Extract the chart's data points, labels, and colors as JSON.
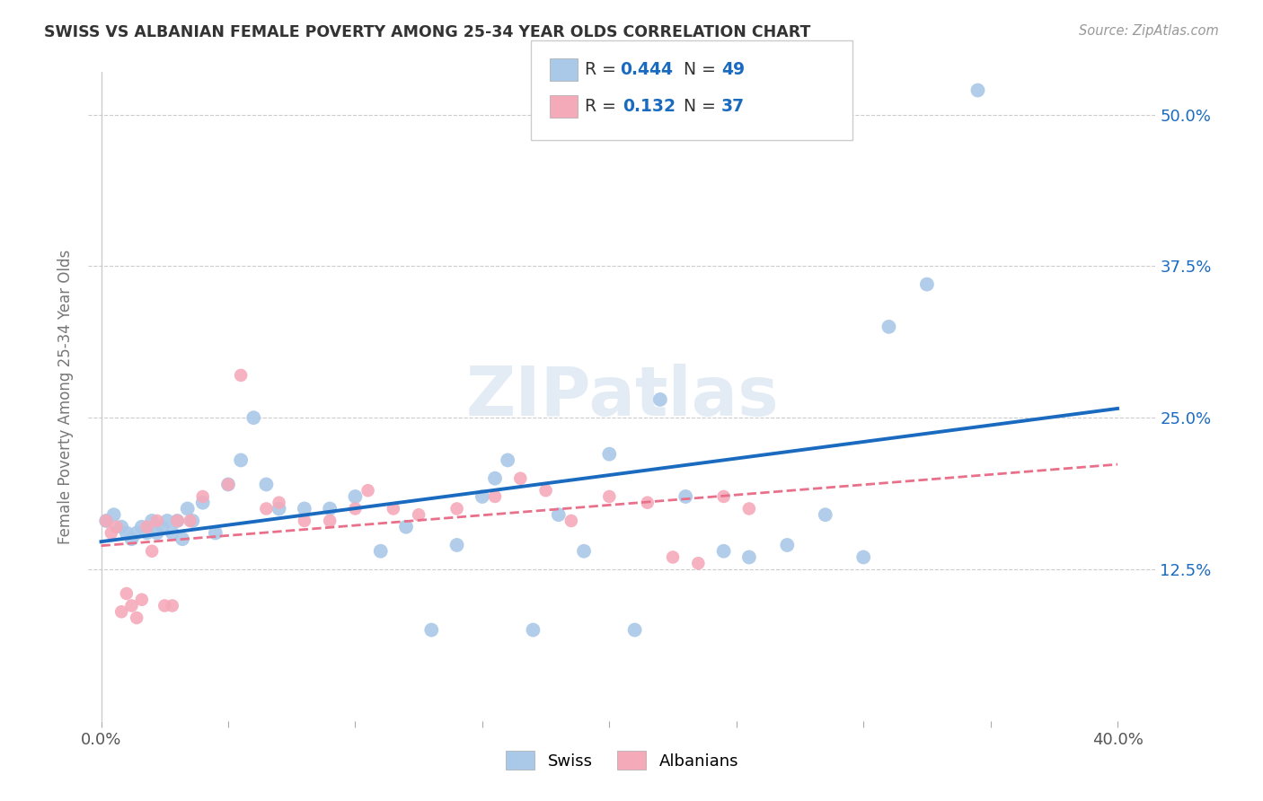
{
  "title": "SWISS VS ALBANIAN FEMALE POVERTY AMONG 25-34 YEAR OLDS CORRELATION CHART",
  "source": "Source: ZipAtlas.com",
  "ylabel": "Female Poverty Among 25-34 Year Olds",
  "xlim": [
    -0.005,
    0.415
  ],
  "ylim": [
    0.0,
    0.535
  ],
  "xtick_positions": [
    0.0,
    0.05,
    0.1,
    0.15,
    0.2,
    0.25,
    0.3,
    0.35,
    0.4
  ],
  "xticklabels": [
    "0.0%",
    "",
    "",
    "",
    "",
    "",
    "",
    "",
    "40.0%"
  ],
  "ytick_positions": [
    0.125,
    0.25,
    0.375,
    0.5
  ],
  "ytick_labels": [
    "12.5%",
    "25.0%",
    "37.5%",
    "50.0%"
  ],
  "swiss_color": "#aac8e8",
  "albanian_color": "#f5aaba",
  "swiss_line_color": "#1a6bbf",
  "albanian_line_color": "#e8708a",
  "legend_R_swiss": "0.444",
  "legend_N_swiss": "49",
  "legend_R_albanian": "0.132",
  "legend_N_albanian": "37",
  "watermark": "ZIPatlas",
  "swiss_x": [
    0.002,
    0.005,
    0.008,
    0.01,
    0.012,
    0.014,
    0.016,
    0.018,
    0.02,
    0.022,
    0.024,
    0.026,
    0.028,
    0.03,
    0.032,
    0.034,
    0.036,
    0.04,
    0.045,
    0.05,
    0.055,
    0.06,
    0.065,
    0.07,
    0.08,
    0.09,
    0.1,
    0.11,
    0.12,
    0.13,
    0.14,
    0.15,
    0.155,
    0.16,
    0.17,
    0.18,
    0.19,
    0.2,
    0.21,
    0.22,
    0.23,
    0.245,
    0.255,
    0.27,
    0.285,
    0.3,
    0.31,
    0.325,
    0.345
  ],
  "swiss_y": [
    0.165,
    0.17,
    0.16,
    0.155,
    0.15,
    0.155,
    0.16,
    0.155,
    0.165,
    0.155,
    0.16,
    0.165,
    0.155,
    0.165,
    0.15,
    0.175,
    0.165,
    0.18,
    0.155,
    0.195,
    0.215,
    0.25,
    0.195,
    0.175,
    0.175,
    0.175,
    0.185,
    0.14,
    0.16,
    0.075,
    0.145,
    0.185,
    0.2,
    0.215,
    0.075,
    0.17,
    0.14,
    0.22,
    0.075,
    0.265,
    0.185,
    0.14,
    0.135,
    0.145,
    0.17,
    0.135,
    0.325,
    0.36,
    0.52
  ],
  "albanian_x": [
    0.002,
    0.004,
    0.006,
    0.008,
    0.01,
    0.012,
    0.014,
    0.016,
    0.018,
    0.02,
    0.022,
    0.025,
    0.028,
    0.03,
    0.035,
    0.04,
    0.05,
    0.055,
    0.065,
    0.07,
    0.08,
    0.09,
    0.1,
    0.105,
    0.115,
    0.125,
    0.14,
    0.155,
    0.165,
    0.175,
    0.185,
    0.2,
    0.215,
    0.225,
    0.235,
    0.245,
    0.255
  ],
  "albanian_y": [
    0.165,
    0.155,
    0.16,
    0.09,
    0.105,
    0.095,
    0.085,
    0.1,
    0.16,
    0.14,
    0.165,
    0.095,
    0.095,
    0.165,
    0.165,
    0.185,
    0.195,
    0.285,
    0.175,
    0.18,
    0.165,
    0.165,
    0.175,
    0.19,
    0.175,
    0.17,
    0.175,
    0.185,
    0.2,
    0.19,
    0.165,
    0.185,
    0.18,
    0.135,
    0.13,
    0.185,
    0.175
  ]
}
